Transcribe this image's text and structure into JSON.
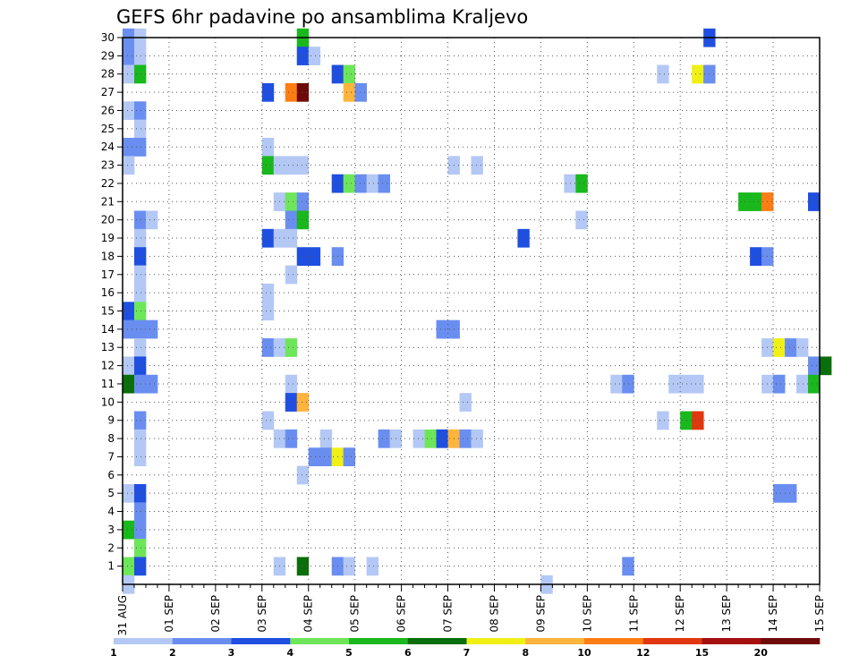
{
  "chart_data": {
    "type": "heatmap",
    "title": "GEFS 6hr padavine po ansamblima Kraljevo",
    "xlabel": "",
    "ylabel": "",
    "x_tick_labels": [
      "31 AUG",
      "01 SEP",
      "02 SEP",
      "03 SEP",
      "04 SEP",
      "05 SEP",
      "06 SEP",
      "07 SEP",
      "08 SEP",
      "09 SEP",
      "10 SEP",
      "11 SEP",
      "12 SEP",
      "13 SEP",
      "14 SEP",
      "15 SEP"
    ],
    "y_tick_labels": [
      "1",
      "2",
      "3",
      "4",
      "5",
      "6",
      "7",
      "8",
      "9",
      "10",
      "11",
      "12",
      "13",
      "14",
      "15",
      "16",
      "17",
      "18",
      "19",
      "20",
      "21",
      "22",
      "23",
      "24",
      "25",
      "26",
      "27",
      "28",
      "29",
      "30"
    ],
    "ylim": [
      0,
      30
    ],
    "time_step_hours": 6,
    "grid": "dotted",
    "colorbar": {
      "levels": [
        "1",
        "2",
        "3",
        "4",
        "5",
        "6",
        "7",
        "8",
        "10",
        "12",
        "15",
        "20"
      ],
      "colors": [
        "#b4c8f5",
        "#6a8ef0",
        "#1f4fe0",
        "#6ee65a",
        "#19b81c",
        "#0a6e0a",
        "#f0f014",
        "#ffb43c",
        "#ff7d14",
        "#e1370f",
        "#a50f0f",
        "#6e0a0a"
      ]
    },
    "cells_format": "[member, step (6-hour steps from 00 UTC 31 AUG), precipitation class 1-12]",
    "cells": [
      [
        30,
        0,
        2
      ],
      [
        30,
        1,
        1
      ],
      [
        30,
        15,
        5
      ],
      [
        30,
        50,
        3
      ],
      [
        29,
        0,
        2
      ],
      [
        29,
        1,
        1
      ],
      [
        29,
        15,
        3
      ],
      [
        29,
        16,
        1
      ],
      [
        28,
        0,
        1
      ],
      [
        28,
        1,
        5
      ],
      [
        28,
        18,
        3
      ],
      [
        28,
        19,
        4
      ],
      [
        28,
        46,
        1
      ],
      [
        28,
        49,
        7
      ],
      [
        28,
        50,
        2
      ],
      [
        27,
        12,
        3
      ],
      [
        27,
        14,
        9
      ],
      [
        27,
        15,
        12
      ],
      [
        27,
        19,
        8
      ],
      [
        27,
        20,
        2
      ],
      [
        26,
        0,
        1
      ],
      [
        26,
        1,
        2
      ],
      [
        25,
        1,
        1
      ],
      [
        24,
        0,
        2
      ],
      [
        24,
        1,
        2
      ],
      [
        24,
        12,
        1
      ],
      [
        23,
        0,
        1
      ],
      [
        23,
        12,
        5
      ],
      [
        23,
        13,
        1
      ],
      [
        23,
        14,
        1
      ],
      [
        23,
        15,
        1
      ],
      [
        23,
        28,
        1
      ],
      [
        23,
        30,
        1
      ],
      [
        22,
        18,
        3
      ],
      [
        22,
        19,
        4
      ],
      [
        22,
        20,
        2
      ],
      [
        22,
        21,
        1
      ],
      [
        22,
        22,
        2
      ],
      [
        22,
        38,
        1
      ],
      [
        22,
        39,
        5
      ],
      [
        21,
        13,
        1
      ],
      [
        21,
        14,
        4
      ],
      [
        21,
        15,
        2
      ],
      [
        21,
        53,
        5
      ],
      [
        21,
        54,
        5
      ],
      [
        21,
        55,
        9
      ],
      [
        21,
        59,
        3
      ],
      [
        20,
        1,
        2
      ],
      [
        20,
        2,
        1
      ],
      [
        20,
        14,
        2
      ],
      [
        20,
        15,
        5
      ],
      [
        20,
        39,
        1
      ],
      [
        19,
        1,
        1
      ],
      [
        19,
        12,
        3
      ],
      [
        19,
        13,
        1
      ],
      [
        19,
        14,
        1
      ],
      [
        19,
        34,
        3
      ],
      [
        18,
        1,
        3
      ],
      [
        18,
        15,
        3
      ],
      [
        18,
        16,
        3
      ],
      [
        18,
        18,
        2
      ],
      [
        18,
        54,
        3
      ],
      [
        18,
        55,
        2
      ],
      [
        17,
        1,
        1
      ],
      [
        17,
        14,
        1
      ],
      [
        16,
        1,
        1
      ],
      [
        16,
        12,
        1
      ],
      [
        15,
        0,
        3
      ],
      [
        15,
        1,
        4
      ],
      [
        15,
        12,
        1
      ],
      [
        14,
        0,
        2
      ],
      [
        14,
        1,
        2
      ],
      [
        14,
        2,
        2
      ],
      [
        14,
        27,
        2
      ],
      [
        14,
        28,
        2
      ],
      [
        13,
        1,
        1
      ],
      [
        13,
        12,
        2
      ],
      [
        13,
        13,
        1
      ],
      [
        13,
        14,
        4
      ],
      [
        13,
        55,
        1
      ],
      [
        13,
        56,
        7
      ],
      [
        13,
        57,
        2
      ],
      [
        13,
        58,
        1
      ],
      [
        12,
        0,
        1
      ],
      [
        12,
        1,
        3
      ],
      [
        12,
        59,
        2
      ],
      [
        12,
        60,
        6
      ],
      [
        11,
        0,
        6
      ],
      [
        11,
        1,
        2
      ],
      [
        11,
        2,
        2
      ],
      [
        11,
        14,
        1
      ],
      [
        11,
        42,
        1
      ],
      [
        11,
        43,
        2
      ],
      [
        11,
        47,
        1
      ],
      [
        11,
        48,
        1
      ],
      [
        11,
        49,
        1
      ],
      [
        11,
        55,
        1
      ],
      [
        11,
        56,
        2
      ],
      [
        11,
        58,
        1
      ],
      [
        11,
        59,
        5
      ],
      [
        10,
        14,
        3
      ],
      [
        10,
        15,
        8
      ],
      [
        10,
        29,
        1
      ],
      [
        9,
        1,
        2
      ],
      [
        9,
        12,
        1
      ],
      [
        9,
        46,
        1
      ],
      [
        9,
        48,
        5
      ],
      [
        9,
        49,
        10
      ],
      [
        8,
        1,
        1
      ],
      [
        8,
        13,
        1
      ],
      [
        8,
        14,
        2
      ],
      [
        8,
        17,
        1
      ],
      [
        8,
        22,
        2
      ],
      [
        8,
        23,
        1
      ],
      [
        8,
        25,
        1
      ],
      [
        8,
        26,
        4
      ],
      [
        8,
        27,
        3
      ],
      [
        8,
        28,
        8
      ],
      [
        8,
        29,
        2
      ],
      [
        8,
        30,
        1
      ],
      [
        7,
        1,
        1
      ],
      [
        7,
        16,
        2
      ],
      [
        7,
        17,
        2
      ],
      [
        7,
        18,
        7
      ],
      [
        7,
        19,
        2
      ],
      [
        6,
        15,
        1
      ],
      [
        5,
        0,
        1
      ],
      [
        5,
        1,
        3
      ],
      [
        5,
        56,
        2
      ],
      [
        5,
        57,
        2
      ],
      [
        4,
        1,
        2
      ],
      [
        3,
        0,
        5
      ],
      [
        3,
        1,
        2
      ],
      [
        2,
        1,
        4
      ],
      [
        1,
        0,
        4
      ],
      [
        1,
        1,
        3
      ],
      [
        1,
        13,
        1
      ],
      [
        1,
        15,
        6
      ],
      [
        1,
        18,
        2
      ],
      [
        1,
        19,
        1
      ],
      [
        1,
        21,
        1
      ],
      [
        1,
        43,
        2
      ],
      [
        0,
        0,
        1
      ],
      [
        0,
        36,
        1
      ]
    ]
  }
}
